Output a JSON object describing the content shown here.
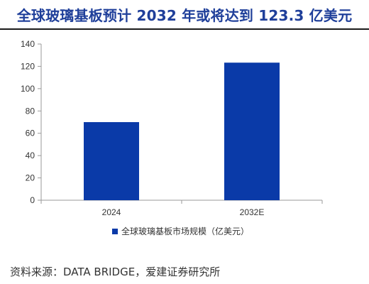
{
  "header": {
    "title": "全球玻璃基板预计 2032 年或将达到 123.3 亿美元"
  },
  "chart_data": {
    "type": "bar",
    "categories": [
      "2024",
      "2032E"
    ],
    "series": [
      {
        "name": "全球玻璃基板市场规模（亿美元）",
        "values": [
          70,
          123.3
        ]
      }
    ],
    "ylim": [
      0,
      140
    ],
    "yticks": [
      0,
      20,
      40,
      60,
      80,
      100,
      120,
      140
    ],
    "bar_color": "#0a3aa8",
    "legend_position": "bottom",
    "grid": false
  },
  "footer": {
    "source": "资料来源：DATA BRIDGE，爱建证券研究所"
  }
}
